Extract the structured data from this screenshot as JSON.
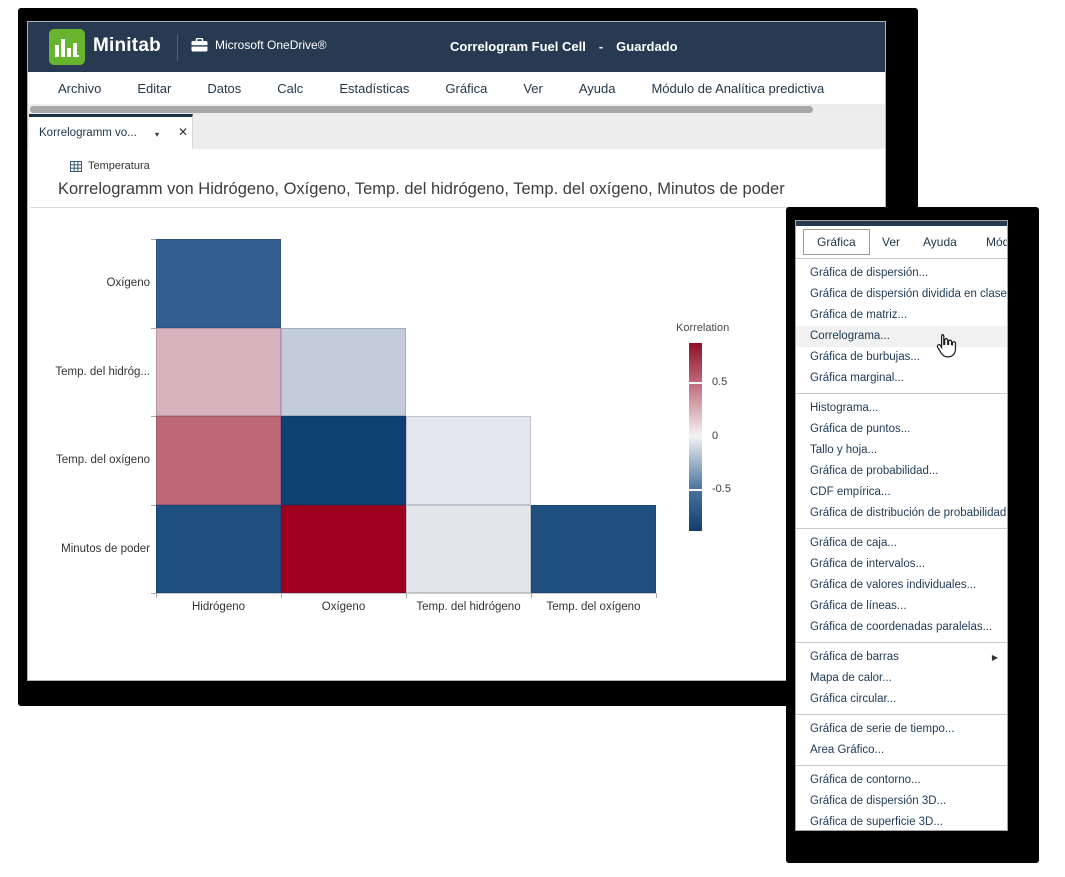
{
  "header": {
    "brand": "Minitab",
    "storage_label": "Microsoft OneDrive®",
    "doc_title": "Correlogram Fuel Cell",
    "separator": "-",
    "save_status": "Guardado"
  },
  "menubar": {
    "items": [
      "Archivo",
      "Editar",
      "Datos",
      "Calc",
      "Estadísticas",
      "Gráfica",
      "Ver",
      "Ayuda",
      "Módulo de Analítica predictiva"
    ]
  },
  "tab": {
    "label": "Korrelogramm vo...",
    "caret": "▾",
    "close": "✕"
  },
  "worksheet": {
    "label": "Temperatura"
  },
  "chart_title": "Korrelogramm von Hidrógeno, Oxígeno, Temp. del hidrógeno, Temp. del oxígeno, Minutos de poder",
  "chart_data": {
    "type": "heatmap",
    "title": "Korrelogramm von Hidrógeno, Oxígeno, Temp. del hidrógeno, Temp. del oxígeno, Minutos de poder",
    "x_categories": [
      "Hidrógeno",
      "Oxígeno",
      "Temp. del hidrógeno",
      "Temp. del oxígeno"
    ],
    "y_categories": [
      "Oxígeno",
      "Temp. del hidróg...",
      "Temp. del oxígeno",
      "Minutos de poder"
    ],
    "legend": {
      "title": "Korrelation",
      "tick_labels": [
        "0.5",
        "0",
        "-0.5"
      ],
      "range": [
        1,
        -1
      ],
      "colors": {
        "positive": "#8e1127",
        "zero": "#f4f3f4",
        "negative": "#113e6c"
      }
    },
    "cells": [
      {
        "row": "Oxígeno",
        "col": "Hidrógeno",
        "color": "#31608e",
        "value_estimate": -0.55
      },
      {
        "row": "Temp. del hidróg...",
        "col": "Hidrógeno",
        "color": "#d8b2bd",
        "value_estimate": 0.25
      },
      {
        "row": "Temp. del hidróg...",
        "col": "Oxígeno",
        "color": "#c2ccda",
        "value_estimate": -0.2
      },
      {
        "row": "Temp. del oxígeno",
        "col": "Hidrógeno",
        "color": "#be6878",
        "value_estimate": 0.5
      },
      {
        "row": "Temp. del oxígeno",
        "col": "Oxígeno",
        "color": "#0d4173",
        "value_estimate": -0.9
      },
      {
        "row": "Temp. del oxígeno",
        "col": "Temp. del hidrógeno",
        "color": "#e3e6ea",
        "value_estimate": -0.05
      },
      {
        "row": "Minutos de poder",
        "col": "Hidrógeno",
        "color": "#20507f",
        "value_estimate": -0.7
      },
      {
        "row": "Minutos de poder",
        "col": "Oxígeno",
        "color": "#a00020",
        "value_estimate": 0.95
      },
      {
        "row": "Minutos de poder",
        "col": "Temp. del hidrógeno",
        "color": "#e3e6e9",
        "value_estimate": -0.05
      },
      {
        "row": "Minutos de poder",
        "col": "Temp. del oxígeno",
        "color": "#20507f",
        "value_estimate": -0.7
      }
    ]
  },
  "context_menu": {
    "menubar_items": [
      "Gráfica",
      "Ver",
      "Ayuda",
      "Mód"
    ],
    "active_menubar_item": "Gráfica",
    "groups": [
      [
        "Gráfica de dispersión...",
        "Gráfica de dispersión dividida en clases...",
        "Gráfica de matriz...",
        "Correlograma...",
        "Gráfica de burbujas...",
        "Gráfica marginal..."
      ],
      [
        "Histograma...",
        "Gráfica de puntos...",
        "Tallo y hoja...",
        "Gráfica de probabilidad...",
        "CDF empírica...",
        "Gráfica de distribución de probabilidad..."
      ],
      [
        "Gráfica de caja...",
        "Gráfica de intervalos...",
        "Gráfica de valores individuales...",
        "Gráfica de líneas...",
        "Gráfica de coordenadas paralelas..."
      ],
      [
        "Gráfica de barras",
        "Mapa de calor...",
        "Gráfica circular..."
      ],
      [
        "Gráfica de serie de tiempo...",
        "Area Gráfico..."
      ],
      [
        "Gráfica de contorno...",
        "Gráfica de dispersión 3D...",
        "Gráfica de superficie 3D..."
      ]
    ],
    "hovered_item": "Correlograma...",
    "submenu_item": "Gráfica de barras"
  },
  "colors": {
    "header_bg": "#273a52",
    "logo_green": "#69b42e",
    "shadow": "#000000",
    "hover_bg": "#f1f1f1"
  }
}
